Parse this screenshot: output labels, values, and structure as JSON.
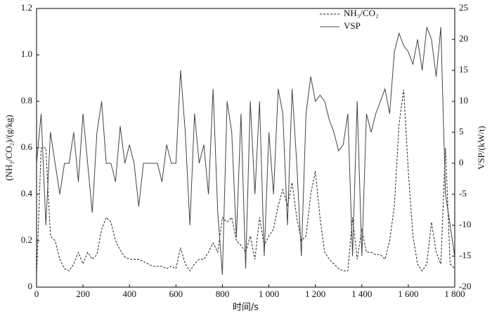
{
  "chart_data": {
    "type": "line",
    "xlabel": "时间/s",
    "ylabel": "(NH₃/CO₂)/(g/kg)",
    "y2label": "VSP/(kW/t)",
    "x": [
      0,
      20,
      40,
      60,
      80,
      100,
      120,
      140,
      160,
      180,
      200,
      220,
      240,
      260,
      280,
      300,
      320,
      340,
      360,
      380,
      400,
      420,
      440,
      460,
      480,
      500,
      520,
      540,
      560,
      580,
      600,
      620,
      640,
      660,
      680,
      700,
      720,
      740,
      760,
      780,
      800,
      820,
      840,
      860,
      880,
      900,
      920,
      940,
      960,
      980,
      1000,
      1020,
      1040,
      1060,
      1080,
      1100,
      1120,
      1140,
      1160,
      1180,
      1200,
      1220,
      1240,
      1260,
      1280,
      1300,
      1320,
      1340,
      1360,
      1380,
      1400,
      1420,
      1440,
      1460,
      1480,
      1500,
      1520,
      1540,
      1560,
      1580,
      1600,
      1620,
      1640,
      1660,
      1680,
      1700,
      1720,
      1740,
      1760,
      1780,
      1800
    ],
    "series": [
      {
        "name": "NH₃/CO₂",
        "color": "#222222",
        "style": "dashed",
        "axis": "y",
        "values": [
          0.05,
          0.6,
          0.6,
          0.22,
          0.2,
          0.12,
          0.08,
          0.07,
          0.1,
          0.15,
          0.1,
          0.15,
          0.12,
          0.14,
          0.25,
          0.3,
          0.28,
          0.2,
          0.16,
          0.13,
          0.12,
          0.12,
          0.12,
          0.11,
          0.1,
          0.09,
          0.09,
          0.09,
          0.08,
          0.09,
          0.08,
          0.17,
          0.1,
          0.07,
          0.1,
          0.12,
          0.12,
          0.15,
          0.19,
          0.15,
          0.3,
          0.28,
          0.3,
          0.2,
          0.18,
          0.15,
          0.22,
          0.12,
          0.3,
          0.18,
          0.22,
          0.25,
          0.35,
          0.42,
          0.35,
          0.45,
          0.3,
          0.2,
          0.22,
          0.4,
          0.5,
          0.3,
          0.15,
          0.12,
          0.1,
          0.08,
          0.07,
          0.07,
          0.3,
          0.12,
          0.25,
          0.15,
          0.15,
          0.14,
          0.14,
          0.12,
          0.2,
          0.35,
          0.7,
          0.85,
          0.5,
          0.22,
          0.1,
          0.07,
          0.1,
          0.28,
          0.15,
          0.1,
          0.6,
          0.1,
          0.08
        ]
      },
      {
        "name": "VSP",
        "color": "#444444",
        "style": "solid",
        "axis": "y2",
        "values": [
          0,
          8,
          -10,
          5,
          0,
          -5,
          0,
          0,
          5,
          -3,
          8,
          0,
          -8,
          5,
          10,
          0,
          0,
          -3,
          6,
          0,
          3,
          0,
          -7,
          0,
          0,
          0,
          0,
          -3,
          3,
          0,
          0,
          15,
          5,
          -10,
          8,
          0,
          3,
          -5,
          12,
          -8,
          -18,
          10,
          5,
          -12,
          8,
          -17,
          10,
          -5,
          10,
          -15,
          5,
          -5,
          12,
          8,
          -10,
          12,
          0,
          -15,
          8,
          14,
          10,
          11,
          10,
          7,
          5,
          2,
          3,
          8,
          -15,
          10,
          -15,
          8,
          5,
          8,
          10,
          12,
          8,
          18,
          21,
          19,
          18,
          16,
          20,
          15,
          22,
          20,
          14,
          22,
          -5,
          -10,
          -15
        ]
      }
    ],
    "xlim": [
      0,
      1800
    ],
    "xticks": [
      0,
      200,
      400,
      600,
      800,
      {
        "value": 1000,
        "label": "1 000"
      },
      {
        "value": 1200,
        "label": "1 200"
      },
      {
        "value": 1400,
        "label": "1 400"
      },
      {
        "value": 1600,
        "label": "1 600"
      },
      {
        "value": 1800,
        "label": "1 800"
      }
    ],
    "ylim": [
      0,
      1.2
    ],
    "yticks": [
      0,
      0.2,
      0.4,
      0.6,
      0.8,
      {
        "value": 1,
        "label": "1.0"
      },
      1.2
    ],
    "y2lim": [
      -20,
      25
    ],
    "y2ticks": [
      -20,
      -15,
      -10,
      -5,
      0,
      5,
      10,
      15,
      20,
      25
    ],
    "legend": "upper right"
  }
}
